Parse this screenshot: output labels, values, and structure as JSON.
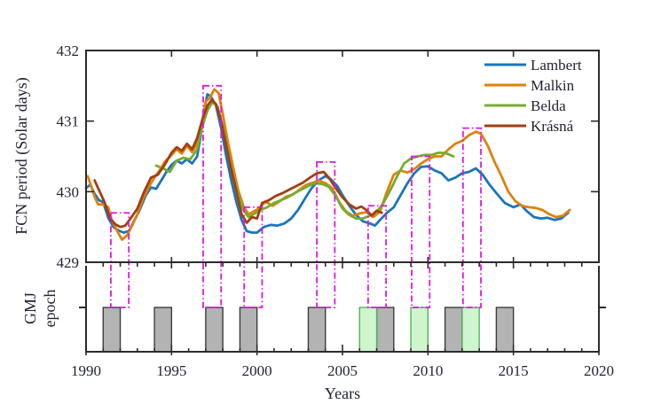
{
  "figure": {
    "background": "#FFFFFF",
    "text_color": "#232336",
    "axis_color": "#2B2B2B"
  },
  "chart_data": {
    "type": "line",
    "title": "",
    "xlabel": "Years",
    "ylabel": "FCN period (Solar days)",
    "ylabel2_line1": "GMJ",
    "ylabel2_line2": "epoch",
    "xlim": [
      1990,
      2020
    ],
    "ylim": [
      429,
      432
    ],
    "x_major_ticks": [
      1990,
      1995,
      2000,
      2005,
      2010,
      2015,
      2020
    ],
    "y_major_ticks": [
      432,
      431,
      430,
      429
    ],
    "grid": "off",
    "legend_position": "top-right-inside",
    "highlight_color": "#E215E2",
    "series": [
      {
        "name": "Lambert",
        "color": "#1B75BC",
        "points": [
          [
            1990.0,
            430.05
          ],
          [
            1990.25,
            430.1
          ],
          [
            1990.5,
            429.97
          ],
          [
            1990.75,
            429.88
          ],
          [
            1991.0,
            429.85
          ],
          [
            1991.3,
            429.63
          ],
          [
            1991.6,
            429.5
          ],
          [
            1991.9,
            429.45
          ],
          [
            1992.2,
            429.42
          ],
          [
            1992.5,
            429.44
          ],
          [
            1992.8,
            429.58
          ],
          [
            1993.1,
            429.72
          ],
          [
            1993.5,
            429.95
          ],
          [
            1993.8,
            430.06
          ],
          [
            1994.1,
            430.04
          ],
          [
            1994.4,
            430.16
          ],
          [
            1994.7,
            430.28
          ],
          [
            1995.0,
            430.38
          ],
          [
            1995.3,
            430.44
          ],
          [
            1995.6,
            430.4
          ],
          [
            1995.9,
            430.46
          ],
          [
            1996.2,
            430.4
          ],
          [
            1996.5,
            430.5
          ],
          [
            1996.7,
            430.78
          ],
          [
            1996.9,
            431.15
          ],
          [
            1997.1,
            431.38
          ],
          [
            1997.3,
            431.35
          ],
          [
            1997.6,
            431.22
          ],
          [
            1997.9,
            430.9
          ],
          [
            1998.2,
            430.5
          ],
          [
            1998.5,
            430.15
          ],
          [
            1998.8,
            429.85
          ],
          [
            1999.1,
            429.6
          ],
          [
            1999.4,
            429.44
          ],
          [
            1999.7,
            429.42
          ],
          [
            2000.0,
            429.42
          ],
          [
            2000.4,
            429.5
          ],
          [
            2000.8,
            429.53
          ],
          [
            2001.2,
            429.52
          ],
          [
            2001.6,
            429.55
          ],
          [
            2002.0,
            429.62
          ],
          [
            2002.4,
            429.74
          ],
          [
            2002.8,
            429.9
          ],
          [
            2003.2,
            430.05
          ],
          [
            2003.6,
            430.16
          ],
          [
            2004.0,
            430.22
          ],
          [
            2004.3,
            430.18
          ],
          [
            2004.7,
            430.08
          ],
          [
            2005.0,
            429.95
          ],
          [
            2005.4,
            429.8
          ],
          [
            2005.8,
            429.67
          ],
          [
            2006.2,
            429.58
          ],
          [
            2006.6,
            429.55
          ],
          [
            2006.9,
            429.52
          ],
          [
            2007.2,
            429.6
          ],
          [
            2007.6,
            429.7
          ],
          [
            2008.0,
            429.78
          ],
          [
            2008.4,
            429.95
          ],
          [
            2008.8,
            430.12
          ],
          [
            2009.2,
            430.26
          ],
          [
            2009.6,
            430.35
          ],
          [
            2010.0,
            430.36
          ],
          [
            2010.4,
            430.3
          ],
          [
            2010.8,
            430.26
          ],
          [
            2011.2,
            430.16
          ],
          [
            2011.6,
            430.2
          ],
          [
            2012.0,
            430.26
          ],
          [
            2012.4,
            430.28
          ],
          [
            2012.8,
            430.33
          ],
          [
            2013.2,
            430.24
          ],
          [
            2013.6,
            430.1
          ],
          [
            2014.0,
            429.98
          ],
          [
            2014.5,
            429.84
          ],
          [
            2015.0,
            429.78
          ],
          [
            2015.4,
            429.82
          ],
          [
            2015.8,
            429.72
          ],
          [
            2016.2,
            429.64
          ],
          [
            2016.6,
            429.62
          ],
          [
            2017.0,
            429.63
          ],
          [
            2017.4,
            429.6
          ],
          [
            2017.8,
            429.62
          ],
          [
            2018.2,
            429.7
          ]
        ]
      },
      {
        "name": "Malkin",
        "color": "#DE820D",
        "points": [
          [
            1990.1,
            430.22
          ],
          [
            1990.3,
            430.08
          ],
          [
            1990.5,
            429.93
          ],
          [
            1990.7,
            429.82
          ],
          [
            1991.0,
            429.82
          ],
          [
            1991.3,
            429.78
          ],
          [
            1991.5,
            429.6
          ],
          [
            1991.8,
            429.45
          ],
          [
            1992.1,
            429.32
          ],
          [
            1992.4,
            429.38
          ],
          [
            1992.7,
            429.52
          ],
          [
            1993.0,
            429.68
          ],
          [
            1993.3,
            429.88
          ],
          [
            1993.7,
            430.08
          ],
          [
            1994.0,
            430.2
          ],
          [
            1994.3,
            430.3
          ],
          [
            1994.6,
            430.42
          ],
          [
            1995.0,
            430.52
          ],
          [
            1995.3,
            430.6
          ],
          [
            1995.6,
            430.54
          ],
          [
            1995.9,
            430.65
          ],
          [
            1996.2,
            430.56
          ],
          [
            1996.5,
            430.68
          ],
          [
            1996.8,
            431.0
          ],
          [
            1997.0,
            431.28
          ],
          [
            1997.25,
            431.33
          ],
          [
            1997.5,
            431.45
          ],
          [
            1997.75,
            431.4
          ],
          [
            1998.0,
            431.1
          ],
          [
            1998.3,
            430.7
          ],
          [
            1998.6,
            430.35
          ],
          [
            1998.9,
            430.02
          ],
          [
            1999.2,
            429.8
          ],
          [
            1999.5,
            429.68
          ],
          [
            1999.8,
            429.72
          ],
          [
            2000.1,
            429.76
          ],
          [
            2000.5,
            429.86
          ],
          [
            2000.9,
            429.8
          ],
          [
            2001.3,
            429.86
          ],
          [
            2001.7,
            429.93
          ],
          [
            2002.1,
            429.96
          ],
          [
            2002.5,
            430.03
          ],
          [
            2002.9,
            430.1
          ],
          [
            2003.3,
            430.13
          ],
          [
            2003.6,
            430.16
          ],
          [
            2004.0,
            430.12
          ],
          [
            2004.4,
            430.05
          ],
          [
            2004.8,
            429.86
          ],
          [
            2005.2,
            429.72
          ],
          [
            2005.6,
            429.66
          ],
          [
            2006.0,
            429.69
          ],
          [
            2006.4,
            429.71
          ],
          [
            2006.8,
            429.64
          ],
          [
            2007.2,
            429.72
          ],
          [
            2007.6,
            430.0
          ],
          [
            2008.0,
            430.24
          ],
          [
            2008.4,
            430.3
          ],
          [
            2008.8,
            430.27
          ],
          [
            2009.2,
            430.32
          ],
          [
            2009.6,
            430.4
          ],
          [
            2010.0,
            430.46
          ],
          [
            2010.4,
            430.5
          ],
          [
            2010.8,
            430.5
          ],
          [
            2011.2,
            430.6
          ],
          [
            2011.6,
            430.68
          ],
          [
            2012.0,
            430.72
          ],
          [
            2012.4,
            430.8
          ],
          [
            2012.8,
            430.85
          ],
          [
            2013.1,
            430.82
          ],
          [
            2013.5,
            430.65
          ],
          [
            2013.9,
            430.42
          ],
          [
            2014.3,
            430.22
          ],
          [
            2014.7,
            430.0
          ],
          [
            2015.1,
            429.87
          ],
          [
            2015.5,
            429.8
          ],
          [
            2015.9,
            429.78
          ],
          [
            2016.3,
            429.77
          ],
          [
            2016.7,
            429.74
          ],
          [
            2017.1,
            429.68
          ],
          [
            2017.5,
            429.64
          ],
          [
            2017.9,
            429.66
          ],
          [
            2018.3,
            429.74
          ]
        ]
      },
      {
        "name": "Belda",
        "color": "#77AC30",
        "points": [
          [
            1994.1,
            430.37
          ],
          [
            1994.5,
            430.33
          ],
          [
            1994.9,
            430.28
          ],
          [
            1995.3,
            430.44
          ],
          [
            1995.7,
            430.48
          ],
          [
            1996.1,
            430.46
          ],
          [
            1996.5,
            430.6
          ],
          [
            1996.8,
            430.92
          ],
          [
            1997.1,
            431.15
          ],
          [
            1997.4,
            431.27
          ],
          [
            1997.7,
            431.2
          ],
          [
            1998.0,
            430.92
          ],
          [
            1998.3,
            430.56
          ],
          [
            1998.6,
            430.22
          ],
          [
            1998.9,
            429.95
          ],
          [
            1999.2,
            429.74
          ],
          [
            1999.5,
            429.64
          ],
          [
            1999.8,
            429.68
          ],
          [
            2000.2,
            429.74
          ],
          [
            2000.6,
            429.78
          ],
          [
            2001.0,
            429.84
          ],
          [
            2001.4,
            429.88
          ],
          [
            2001.8,
            429.92
          ],
          [
            2002.2,
            429.98
          ],
          [
            2002.6,
            430.03
          ],
          [
            2003.0,
            430.08
          ],
          [
            2003.4,
            430.12
          ],
          [
            2003.8,
            430.11
          ],
          [
            2004.2,
            430.07
          ],
          [
            2004.6,
            429.94
          ],
          [
            2005.0,
            429.76
          ],
          [
            2005.4,
            429.67
          ],
          [
            2005.8,
            429.62
          ],
          [
            2006.2,
            429.62
          ],
          [
            2006.6,
            429.66
          ],
          [
            2007.0,
            429.71
          ],
          [
            2007.4,
            429.84
          ],
          [
            2007.8,
            430.02
          ],
          [
            2008.2,
            430.22
          ],
          [
            2008.6,
            430.4
          ],
          [
            2009.0,
            430.47
          ],
          [
            2009.4,
            430.5
          ],
          [
            2009.8,
            430.52
          ],
          [
            2010.2,
            430.52
          ],
          [
            2010.6,
            430.55
          ],
          [
            2011.0,
            430.55
          ],
          [
            2011.3,
            430.52
          ],
          [
            2011.5,
            430.5
          ]
        ]
      },
      {
        "name": "Krásná",
        "color": "#A33E10",
        "points": [
          [
            1990.5,
            430.16
          ],
          [
            1990.8,
            430.0
          ],
          [
            1991.1,
            429.84
          ],
          [
            1991.4,
            429.62
          ],
          [
            1991.7,
            429.54
          ],
          [
            1992.0,
            429.5
          ],
          [
            1992.3,
            429.52
          ],
          [
            1992.6,
            429.62
          ],
          [
            1993.0,
            429.76
          ],
          [
            1993.4,
            430.0
          ],
          [
            1993.8,
            430.2
          ],
          [
            1994.2,
            430.24
          ],
          [
            1994.6,
            430.38
          ],
          [
            1995.0,
            430.55
          ],
          [
            1995.3,
            430.63
          ],
          [
            1995.6,
            430.58
          ],
          [
            1995.9,
            430.68
          ],
          [
            1996.2,
            430.6
          ],
          [
            1996.5,
            430.76
          ],
          [
            1996.8,
            431.02
          ],
          [
            1997.1,
            431.22
          ],
          [
            1997.35,
            431.3
          ],
          [
            1997.6,
            431.24
          ],
          [
            1997.9,
            431.0
          ],
          [
            1998.2,
            430.65
          ],
          [
            1998.5,
            430.3
          ],
          [
            1998.8,
            430.0
          ],
          [
            1999.1,
            429.68
          ],
          [
            1999.4,
            429.56
          ],
          [
            1999.7,
            429.64
          ],
          [
            2000.0,
            429.62
          ],
          [
            2000.3,
            429.84
          ],
          [
            2000.7,
            429.88
          ],
          [
            2001.1,
            429.94
          ],
          [
            2001.5,
            429.98
          ],
          [
            2001.9,
            430.03
          ],
          [
            2002.3,
            430.08
          ],
          [
            2002.7,
            430.13
          ],
          [
            2003.1,
            430.2
          ],
          [
            2003.5,
            430.26
          ],
          [
            2003.9,
            430.28
          ],
          [
            2004.2,
            430.2
          ],
          [
            2004.6,
            430.05
          ],
          [
            2005.0,
            429.92
          ],
          [
            2005.4,
            429.82
          ],
          [
            2005.8,
            429.76
          ],
          [
            2006.1,
            429.79
          ],
          [
            2006.4,
            429.74
          ],
          [
            2006.7,
            429.66
          ],
          [
            2007.0,
            429.73
          ],
          [
            2007.3,
            429.7
          ]
        ]
      }
    ],
    "highlight_boxes": [
      {
        "x_start": 1991.45,
        "x_end": 1992.5,
        "top": 429.7
      },
      {
        "x_start": 1996.85,
        "x_end": 1997.9,
        "top": 431.5
      },
      {
        "x_start": 1999.25,
        "x_end": 2000.3,
        "top": 429.78
      },
      {
        "x_start": 2003.5,
        "x_end": 2004.55,
        "top": 430.42
      },
      {
        "x_start": 2006.5,
        "x_end": 2007.55,
        "top": 429.8
      },
      {
        "x_start": 2009.05,
        "x_end": 2010.1,
        "top": 430.5
      },
      {
        "x_start": 2012.05,
        "x_end": 2013.1,
        "top": 430.9
      }
    ],
    "epoch_bars": {
      "gray": {
        "fill": "#B3B3B3",
        "stroke": "#3C3C3C",
        "intervals": [
          [
            1991,
            1992
          ],
          [
            1994,
            1995
          ],
          [
            1997,
            1998
          ],
          [
            1999,
            2000
          ],
          [
            2003,
            2004
          ],
          [
            2007,
            2008
          ],
          [
            2011,
            2012
          ],
          [
            2014,
            2015
          ]
        ]
      },
      "green": {
        "fill": "#CEF5CE",
        "stroke": "#58B158",
        "intervals": [
          [
            2006,
            2007
          ],
          [
            2009,
            2010
          ],
          [
            2012,
            2013
          ]
        ]
      }
    },
    "legend": [
      "Lambert",
      "Malkin",
      "Belda",
      "Krásná"
    ]
  }
}
